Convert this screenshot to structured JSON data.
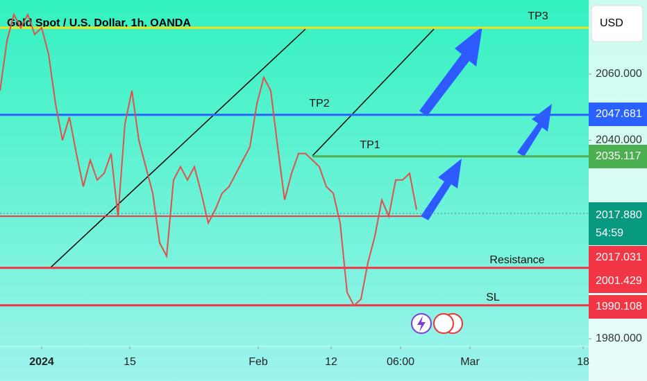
{
  "chart_data": {
    "type": "line",
    "title": "Gold Spot / U.S. Dollar, 1h, OANDA",
    "currency": "USD",
    "color": "#e0504a",
    "values": [
      2055,
      2070,
      2078,
      2074,
      2078,
      2072,
      2074,
      2066,
      2051,
      2040,
      2047,
      2036,
      2026,
      2034,
      2028,
      2030,
      2036,
      2017,
      2045,
      2055,
      2040,
      2032,
      2024,
      2009,
      2005,
      2028,
      2032,
      2028,
      2032,
      2024,
      2015,
      2019,
      2024,
      2026,
      2030,
      2034,
      2038,
      2051,
      2059,
      2055,
      2038,
      2022,
      2030,
      2036,
      2036,
      2034,
      2032,
      2026,
      2024,
      2015,
      1994,
      1990,
      1992,
      2003,
      2011,
      2022,
      2017,
      2028,
      2028,
      2030,
      2019
    ],
    "xlim": [
      0,
      84.8
    ],
    "xticks": [
      {
        "value": 6,
        "label": "2024"
      },
      {
        "value": 18.7,
        "label": "15"
      },
      {
        "value": 37.2,
        "label": "Feb"
      },
      {
        "value": 47.7,
        "label": "12"
      },
      {
        "value": 57.7,
        "label": "06:00"
      },
      {
        "value": 67.7,
        "label": "Mar"
      },
      {
        "value": 84,
        "label": "18"
      }
    ],
    "ylim": [
      1977.7,
      2082.4
    ],
    "yticks": [
      {
        "value": 1980,
        "label": "1980.000"
      },
      {
        "value": 2040,
        "label": "2040.000"
      },
      {
        "value": 2060,
        "label": "2060.000"
      }
    ],
    "levels": [
      {
        "label": "TP3",
        "value": 2074,
        "color": "#f2e21a"
      },
      {
        "label": "TP2",
        "value": 2047.681,
        "color": "#2962ff"
      },
      {
        "label": "TP1",
        "value": 2035.117,
        "color": "#4caf50"
      },
      {
        "value": 2017.031,
        "color": "#f23645"
      },
      {
        "label": "Resistance",
        "value": 2001.429,
        "color": "#f23645"
      },
      {
        "label": "SL",
        "value": 1990.108,
        "color": "#f23645"
      }
    ],
    "last_price": 2017.88,
    "last_price_label": "2017.880",
    "countdown": "54:59",
    "last_price_color": "#089981"
  }
}
